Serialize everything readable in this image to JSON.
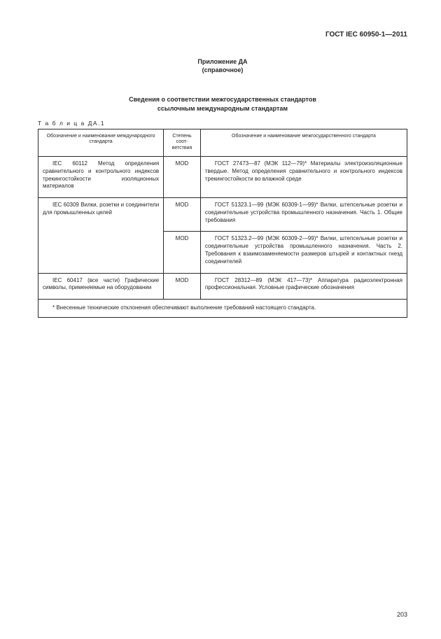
{
  "doc_id": "ГОСТ IEC 60950-1—2011",
  "appendix_line1": "Приложение ДА",
  "appendix_line2": "(справочное)",
  "title_line1": "Сведения о соответствии межгосударственных стандартов",
  "title_line2": "ссылочным международным стандартам",
  "table_label": "Т а б л и ц а  ДА.1",
  "headers": {
    "col1": "Обозначение  и наименование международного стандарта",
    "col2": "Степень соот- ветствия",
    "col3": "Обозначение и наименование межгосударственного стандарта"
  },
  "rows": [
    {
      "c1": "IEC 60112 Метод определения сравнительного и контрольного ин­дексов трекингостойкости изоляци­онных материалов",
      "c2": "MOD",
      "c3": "ГОСТ 27473—87 (МЭК 112—79)* Материалы электроизо­ляционные твердые. Метод определения сравнительного и контрольного индексов трекингостойкости во влажной среде",
      "c1_rowspan": 1
    },
    {
      "c1": "IEC 60309 Вилки, розетки и со­единители для промышленных це­лей",
      "c2": "MOD",
      "c3": "ГОСТ 51323.1—99 (МЭК 60309-1—99)* Вилки, штепсель­ные розетки и соединительные устройства промышленно­го назначения. Часть 1. Общие требования",
      "c1_rowspan": 2
    },
    {
      "c1": "",
      "c2": "MOD",
      "c3": "ГОСТ 51323.2—99 (МЭК 60309-2—99)* Вилки, штепсель­ные розетки и соединительные устройства промышленно­го назначения. Часть 2. Требования к взаимозаменяемос­ти размеров штырей и контактных гнезд соединителей",
      "c1_rowspan": 0
    },
    {
      "c1": "IEC 60417 (все части) Графичес­кие символы, применяемые на обо­рудовании",
      "c2": "MOD",
      "c3": "ГОСТ 28312—89 (МЭК 417—73)* Аппаратура радиоэлек­тронная профессиональная. Условные графические обо­значения",
      "c1_rowspan": 1
    }
  ],
  "footnote": "* Внесенные технические отклонения обеспечивают выполнение требований настоящего стандарта.",
  "page_number": "203"
}
